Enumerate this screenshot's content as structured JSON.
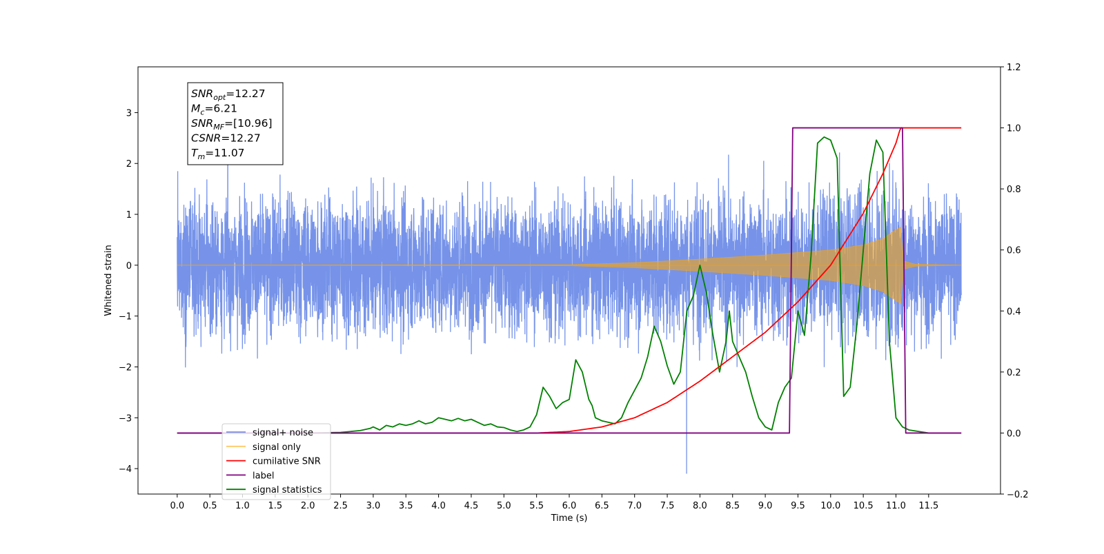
{
  "chart_data": {
    "type": "line",
    "xlabel": "Time (s)",
    "ylabel": "Whitened strain",
    "xlim": [
      -0.6,
      12.6
    ],
    "ylim_left": [
      -4.5,
      3.9
    ],
    "ylim_right": [
      -0.2,
      1.2
    ],
    "x_ticks": [
      "0.0",
      "0.5",
      "1.0",
      "1.5",
      "2.0",
      "2.5",
      "3.0",
      "3.5",
      "4.0",
      "4.5",
      "5.0",
      "5.5",
      "6.0",
      "6.5",
      "7.0",
      "7.5",
      "8.0",
      "8.5",
      "9.0",
      "9.5",
      "10.0",
      "10.5",
      "11.0",
      "11.5"
    ],
    "y_ticks_left": [
      "3",
      "2",
      "1",
      "0",
      "−1",
      "−2",
      "−3",
      "−4"
    ],
    "y_ticks_right": [
      "1.2",
      "1.0",
      "0.8",
      "0.6",
      "0.4",
      "0.2",
      "0.0",
      "−0.2"
    ],
    "grid": false,
    "legend_position": "lower-left",
    "annotation": {
      "lines": [
        {
          "base": "SNR",
          "sub": "opt",
          "value": "=12.27"
        },
        {
          "base": "M",
          "sub": "c",
          "value": "=6.21"
        },
        {
          "base": "SNR",
          "sub": "MF",
          "value": "=[10.96]"
        },
        {
          "base": "CSNR",
          "sub": "",
          "value": "=12.27"
        },
        {
          "base": "T",
          "sub": "m",
          "value": "=11.07"
        }
      ]
    },
    "series": [
      {
        "name": "signal+ noise",
        "axis": "left",
        "color": "#4169e1",
        "kind": "noise",
        "x_range": [
          0.0,
          12.0
        ],
        "noise_std": 0.9,
        "y_max": 3.55,
        "y_min": -4.1
      },
      {
        "name": "signal only",
        "axis": "left",
        "color": "#ffa500",
        "kind": "chirp",
        "x_range": [
          0.0,
          12.0
        ],
        "merger_time": 11.07,
        "envelope": [
          [
            0.0,
            0.0
          ],
          [
            6.0,
            0.01
          ],
          [
            7.0,
            0.05
          ],
          [
            8.0,
            0.12
          ],
          [
            9.0,
            0.2
          ],
          [
            9.5,
            0.25
          ],
          [
            10.0,
            0.3
          ],
          [
            10.5,
            0.4
          ],
          [
            10.8,
            0.52
          ],
          [
            11.0,
            0.7
          ],
          [
            11.07,
            0.75
          ],
          [
            11.12,
            0.08
          ],
          [
            11.3,
            0.02
          ],
          [
            12.0,
            0.0
          ]
        ]
      },
      {
        "name": "cumilative SNR",
        "axis": "right",
        "color": "#ff0000",
        "x": [
          0.0,
          5.5,
          6.0,
          6.5,
          7.0,
          7.5,
          8.0,
          8.5,
          9.0,
          9.5,
          10.0,
          10.5,
          10.8,
          11.0,
          11.07,
          11.2,
          12.0
        ],
        "y": [
          0.0,
          0.0,
          0.005,
          0.02,
          0.05,
          0.1,
          0.17,
          0.25,
          0.33,
          0.43,
          0.55,
          0.72,
          0.85,
          0.95,
          1.0,
          1.0,
          1.0
        ]
      },
      {
        "name": "label",
        "axis": "right",
        "color": "#800080",
        "x": [
          0.0,
          9.37,
          9.42,
          11.05,
          11.1,
          11.15,
          12.0
        ],
        "y": [
          0.0,
          0.0,
          1.0,
          1.0,
          1.0,
          0.0,
          0.0
        ]
      },
      {
        "name": "signal statistics",
        "axis": "right",
        "color": "#008000",
        "x": [
          0.0,
          2.0,
          2.5,
          2.8,
          2.95,
          3.0,
          3.1,
          3.2,
          3.3,
          3.4,
          3.5,
          3.6,
          3.7,
          3.8,
          3.9,
          4.0,
          4.1,
          4.2,
          4.3,
          4.4,
          4.5,
          4.6,
          4.7,
          4.8,
          4.9,
          5.0,
          5.1,
          5.2,
          5.3,
          5.4,
          5.5,
          5.6,
          5.7,
          5.8,
          5.9,
          6.0,
          6.1,
          6.2,
          6.3,
          6.35,
          6.4,
          6.5,
          6.6,
          6.7,
          6.8,
          6.9,
          7.0,
          7.1,
          7.2,
          7.3,
          7.4,
          7.5,
          7.6,
          7.7,
          7.8,
          7.9,
          8.0,
          8.1,
          8.2,
          8.3,
          8.4,
          8.45,
          8.5,
          8.6,
          8.7,
          8.8,
          8.9,
          9.0,
          9.1,
          9.2,
          9.3,
          9.4,
          9.5,
          9.6,
          9.7,
          9.8,
          9.9,
          10.0,
          10.1,
          10.2,
          10.3,
          10.4,
          10.5,
          10.6,
          10.7,
          10.8,
          10.9,
          11.0,
          11.1,
          11.2,
          11.5,
          12.0
        ],
        "y": [
          0.0,
          0.0,
          0.002,
          0.008,
          0.015,
          0.02,
          0.01,
          0.025,
          0.02,
          0.03,
          0.025,
          0.03,
          0.04,
          0.03,
          0.035,
          0.05,
          0.045,
          0.04,
          0.048,
          0.04,
          0.045,
          0.035,
          0.025,
          0.03,
          0.02,
          0.018,
          0.01,
          0.005,
          0.01,
          0.02,
          0.06,
          0.15,
          0.12,
          0.08,
          0.1,
          0.11,
          0.24,
          0.2,
          0.11,
          0.09,
          0.05,
          0.04,
          0.035,
          0.03,
          0.05,
          0.1,
          0.14,
          0.18,
          0.25,
          0.35,
          0.3,
          0.22,
          0.16,
          0.2,
          0.4,
          0.45,
          0.55,
          0.46,
          0.32,
          0.2,
          0.3,
          0.4,
          0.3,
          0.25,
          0.2,
          0.12,
          0.05,
          0.02,
          0.01,
          0.1,
          0.15,
          0.18,
          0.4,
          0.32,
          0.58,
          0.95,
          0.97,
          0.96,
          0.9,
          0.12,
          0.15,
          0.35,
          0.6,
          0.85,
          0.96,
          0.92,
          0.3,
          0.05,
          0.02,
          0.01,
          0.0,
          0.0
        ]
      }
    ]
  }
}
